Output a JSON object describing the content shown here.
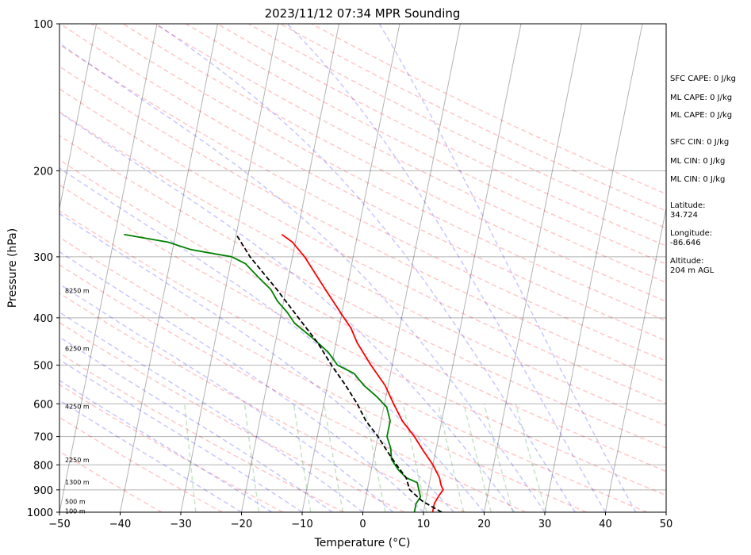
{
  "chart_data": {
    "type": "line",
    "title": "2023/11/12 07:34 MPR Sounding",
    "xlabel": "Temperature (°C)",
    "ylabel": "Pressure (hPa)",
    "xlim": [
      -50,
      50
    ],
    "ylim": [
      1000,
      100
    ],
    "y_scale": "log",
    "grid": true,
    "x_ticks": [
      -50,
      -40,
      -30,
      -20,
      -10,
      0,
      10,
      20,
      30,
      40,
      50
    ],
    "y_ticks": [
      1000,
      900,
      800,
      700,
      600,
      500,
      400,
      300,
      200,
      100
    ],
    "skew": "skew-T log-P (isotherms slanted)",
    "series": [
      {
        "key": "temperature",
        "color": "#ff0000",
        "points": [
          [
            1000,
            11.5
          ],
          [
            960,
            11.5
          ],
          [
            925,
            12.0
          ],
          [
            900,
            12.5
          ],
          [
            880,
            12.0
          ],
          [
            850,
            11.5
          ],
          [
            800,
            10.0
          ],
          [
            750,
            8.0
          ],
          [
            700,
            6.0
          ],
          [
            650,
            3.5
          ],
          [
            600,
            1.5
          ],
          [
            550,
            -0.5
          ],
          [
            500,
            -3.5
          ],
          [
            450,
            -6.5
          ],
          [
            420,
            -8.0
          ],
          [
            400,
            -9.5
          ],
          [
            350,
            -13.5
          ],
          [
            300,
            -18.0
          ],
          [
            280,
            -20.5
          ],
          [
            270,
            -22.5
          ]
        ]
      },
      {
        "key": "dewpoint",
        "color": "#008000",
        "points": [
          [
            1000,
            8.5
          ],
          [
            960,
            8.5
          ],
          [
            930,
            9.0
          ],
          [
            900,
            8.5
          ],
          [
            870,
            8.0
          ],
          [
            850,
            6.0
          ],
          [
            820,
            4.5
          ],
          [
            780,
            3.0
          ],
          [
            740,
            2.5
          ],
          [
            700,
            1.5
          ],
          [
            650,
            1.5
          ],
          [
            610,
            0.5
          ],
          [
            580,
            -1.5
          ],
          [
            550,
            -4.0
          ],
          [
            520,
            -6.0
          ],
          [
            500,
            -9.0
          ],
          [
            470,
            -11.0
          ],
          [
            440,
            -14.0
          ],
          [
            410,
            -17.5
          ],
          [
            390,
            -19.0
          ],
          [
            370,
            -21.0
          ],
          [
            350,
            -22.5
          ],
          [
            330,
            -25.0
          ],
          [
            310,
            -27.5
          ],
          [
            300,
            -30.0
          ],
          [
            290,
            -37.0
          ],
          [
            280,
            -41.0
          ],
          [
            270,
            -48.5
          ]
        ]
      },
      {
        "key": "parcel",
        "color": "#000000",
        "dashed": true,
        "points": [
          [
            1000,
            13.0
          ],
          [
            950,
            9.5
          ],
          [
            900,
            7.0
          ],
          [
            850,
            6.0
          ],
          [
            800,
            4.0
          ],
          [
            750,
            2.0
          ],
          [
            700,
            0.0
          ],
          [
            650,
            -2.5
          ],
          [
            600,
            -4.5
          ],
          [
            550,
            -7.0
          ],
          [
            500,
            -10.0
          ],
          [
            450,
            -13.0
          ],
          [
            400,
            -17.0
          ],
          [
            350,
            -21.5
          ],
          [
            300,
            -27.0
          ],
          [
            270,
            -30.0
          ]
        ]
      }
    ],
    "height_labels": [
      {
        "label": "100 m",
        "p": 995
      },
      {
        "label": "500 m",
        "p": 950
      },
      {
        "label": "1300 m",
        "p": 867
      },
      {
        "label": "2250 m",
        "p": 782
      },
      {
        "label": "4250 m",
        "p": 607
      },
      {
        "label": "6250 m",
        "p": 462
      },
      {
        "label": "8250 m",
        "p": 352
      }
    ],
    "annotations": [
      "SFC CAPE: 0 J/kg",
      "ML CAPE: 0 J/kg",
      "ML CAPE: 0 J/kg",
      "SFC CIN: 0 J/kg",
      "ML CIN: 0 J/kg",
      "ML CIN: 0 J/kg",
      "Latitude:",
      "34.724",
      "Longitude:",
      "-86.646",
      "Altitude:",
      "204 m AGL"
    ]
  },
  "colors": {
    "dry_adiabat": "#ff0000",
    "moist_adiabat": "#0000ff",
    "mixing_ratio": "#008000",
    "isotherm": "#000000",
    "isobar": "#000000"
  }
}
